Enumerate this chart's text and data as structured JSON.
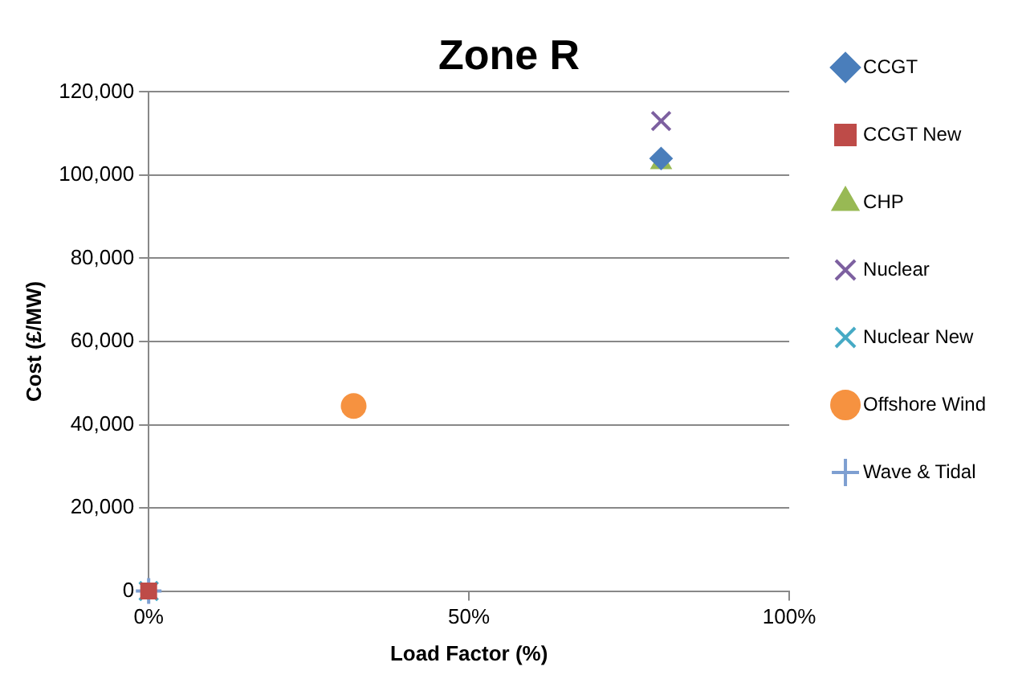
{
  "chart_data": {
    "type": "scatter",
    "title": "Zone R",
    "xlabel": "Load Factor (%)",
    "ylabel": "Cost (£/MW)",
    "xlim": [
      0,
      100
    ],
    "xticks": [
      {
        "value": 0,
        "label": "0%"
      },
      {
        "value": 50,
        "label": "50%"
      },
      {
        "value": 100,
        "label": "100%"
      }
    ],
    "ylim": [
      0,
      120000
    ],
    "yticks": [
      {
        "value": 0,
        "label": "0"
      },
      {
        "value": 20000,
        "label": "20,000"
      },
      {
        "value": 40000,
        "label": "40,000"
      },
      {
        "value": 60000,
        "label": "60,000"
      },
      {
        "value": 80000,
        "label": "80,000"
      },
      {
        "value": 100000,
        "label": "100,000"
      },
      {
        "value": 120000,
        "label": "120,000"
      }
    ],
    "grid": "y",
    "legend": "right",
    "series": [
      {
        "name": "CCGT",
        "color": "#4a7ebb",
        "marker": "diamond",
        "x": [
          80
        ],
        "values": [
          104000
        ]
      },
      {
        "name": "CCGT New",
        "color": "#be4b48",
        "marker": "square",
        "x": [
          0
        ],
        "values": [
          0
        ]
      },
      {
        "name": "CHP",
        "color": "#98b954",
        "marker": "triangle",
        "x": [
          80
        ],
        "values": [
          103000
        ]
      },
      {
        "name": "Nuclear",
        "color": "#7d60a0",
        "marker": "cross",
        "x": [
          80
        ],
        "values": [
          113000
        ]
      },
      {
        "name": "Nuclear New",
        "color": "#46aac5",
        "marker": "cross",
        "x": [
          0
        ],
        "values": [
          0
        ]
      },
      {
        "name": "Offshore Wind",
        "color": "#f69240",
        "marker": "circle",
        "x": [
          32
        ],
        "values": [
          44500
        ]
      },
      {
        "name": "Wave & Tidal",
        "color": "#7e9fd1",
        "marker": "plus",
        "x": [
          0
        ],
        "values": [
          0
        ]
      }
    ]
  }
}
